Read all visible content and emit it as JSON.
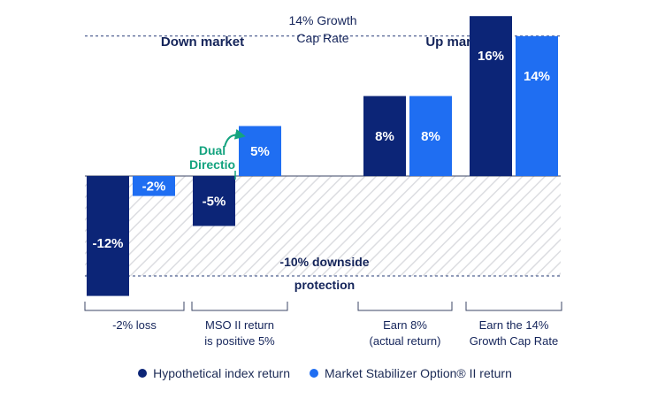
{
  "colors": {
    "index": "#0c2577",
    "mso": "#1f6ef2",
    "dual": "#14a37f",
    "text": "#14245a",
    "gridline": "#2a3f7a",
    "hatch": "#d7d9dd"
  },
  "chart_data": {
    "type": "bar",
    "title": "",
    "xlabel": "",
    "ylabel": "",
    "ylim": [
      -12,
      16
    ],
    "groups": [
      {
        "heading": "Down market",
        "scenarios": [
          "-2% loss",
          "MSO II return\nis positive 5%"
        ]
      },
      {
        "heading": "Up market",
        "scenarios": [
          "Earn 8%\n(actual return)",
          "Earn the 14%\nGrowth Cap Rate"
        ]
      }
    ],
    "categories": [
      "-2% loss",
      "MSO II return\nis positive 5%",
      "Earn 8%\n(actual return)",
      "Earn the 14%\nGrowth Cap Rate"
    ],
    "series": [
      {
        "name": "Hypothetical index return",
        "values": [
          -12,
          -5,
          8,
          16
        ],
        "labels": [
          "-12%",
          "-5%",
          "8%",
          "16%"
        ]
      },
      {
        "name": "Market Stabilizer Option® II return",
        "values": [
          -2,
          5,
          8,
          14
        ],
        "labels": [
          "-2%",
          "5%",
          "8%",
          "14%"
        ]
      }
    ],
    "reference_lines": [
      {
        "value": 14,
        "label": "14% Growth\nCap Rate"
      },
      {
        "value": -10,
        "label": "-10% downside\nprotection"
      }
    ],
    "annotations": [
      {
        "text": "Dual\nDirectio",
        "category": 1
      }
    ],
    "legend": {
      "position": "bottom"
    }
  }
}
